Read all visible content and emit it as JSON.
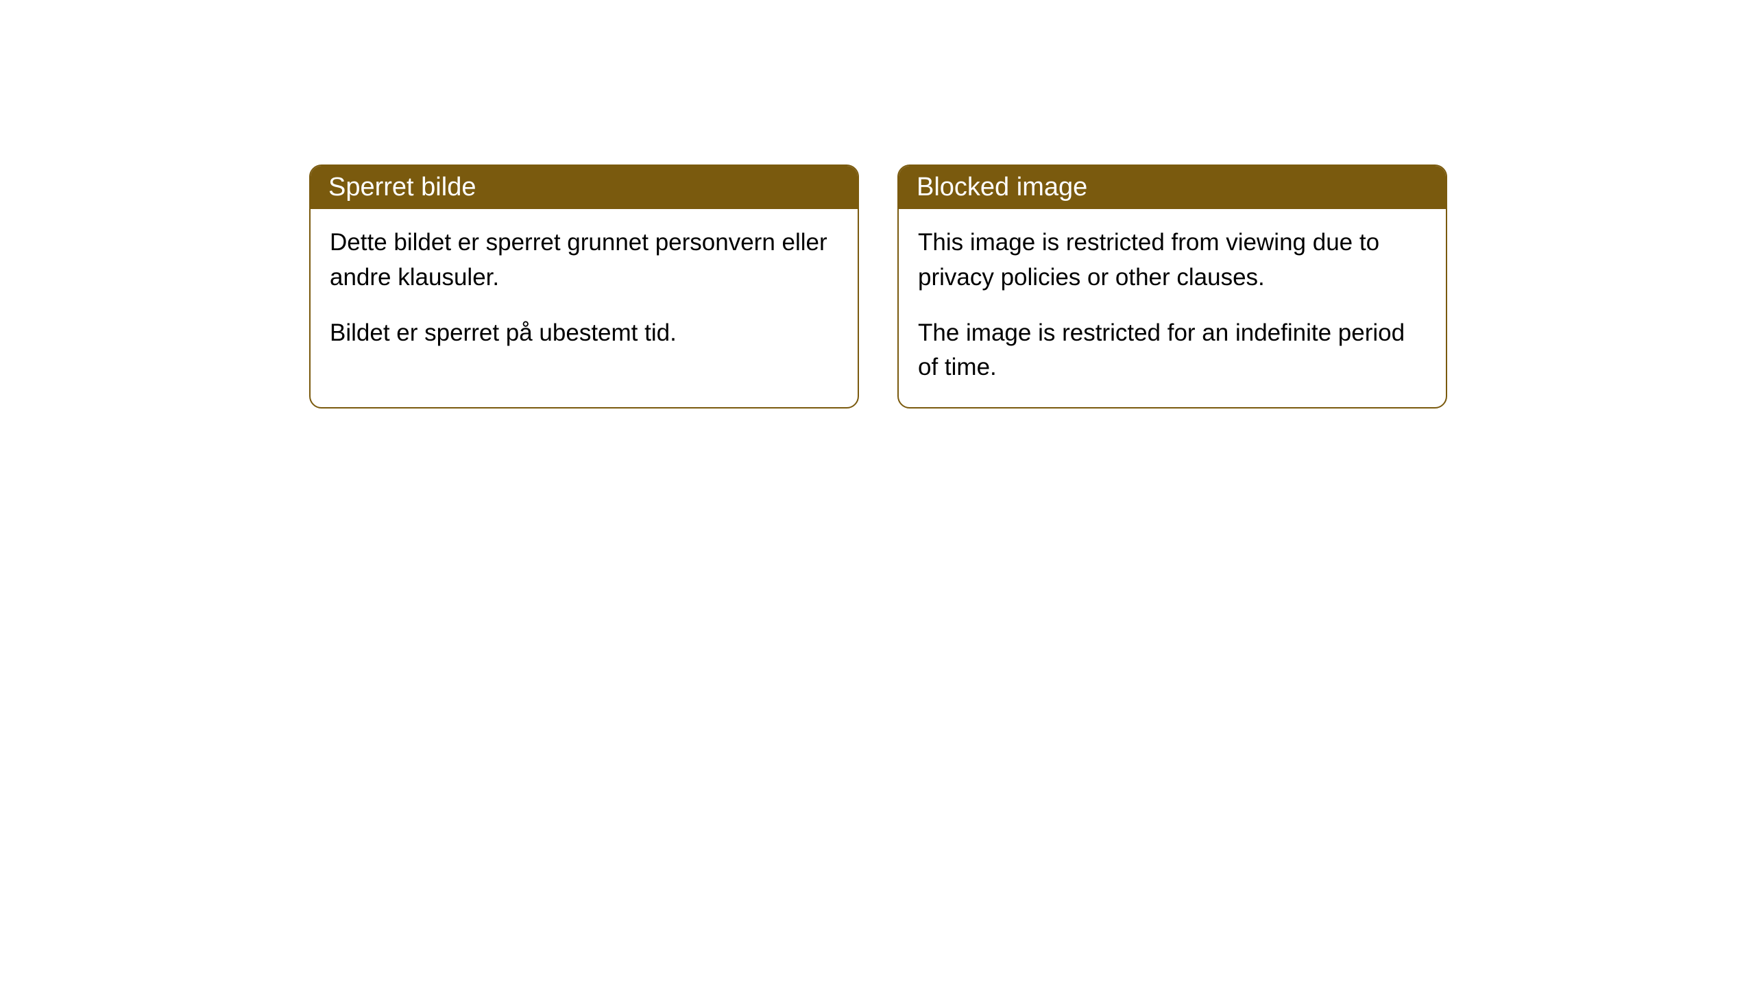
{
  "cards": [
    {
      "title": "Sperret bilde",
      "paragraph1": "Dette bildet er sperret grunnet personvern eller andre klausuler.",
      "paragraph2": "Bildet er sperret på ubestemt tid."
    },
    {
      "title": "Blocked image",
      "paragraph1": "This image is restricted from viewing due to privacy policies or other clauses.",
      "paragraph2": "The image is restricted for an indefinite period of time."
    }
  ],
  "style": {
    "header_bg_color": "#7a5a0e",
    "header_text_color": "#ffffff",
    "border_color": "#7a5a0e",
    "body_bg_color": "#ffffff",
    "body_text_color": "#000000",
    "border_radius": 18,
    "title_fontsize": 38,
    "body_fontsize": 35
  }
}
